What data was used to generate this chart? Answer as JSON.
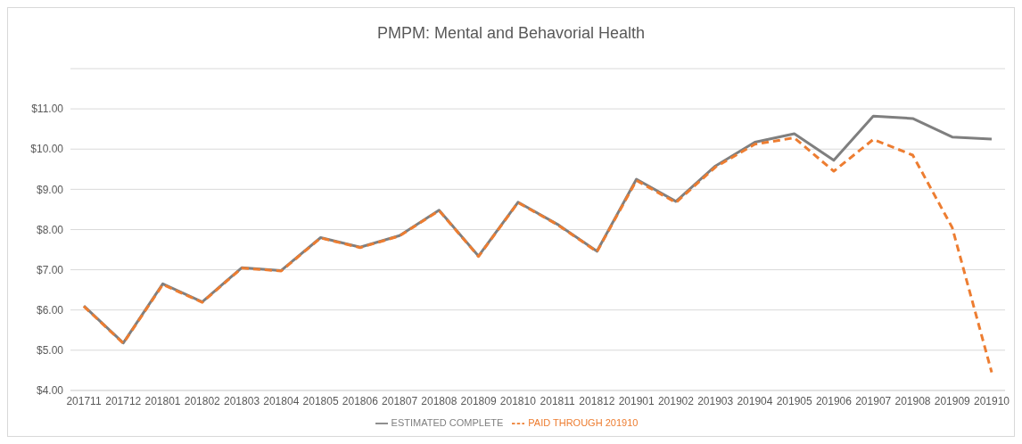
{
  "chart_data": {
    "type": "line",
    "title": "PMPM: Mental and Behavorial Health",
    "categories": [
      "201711",
      "201712",
      "201801",
      "201802",
      "201803",
      "201804",
      "201805",
      "201806",
      "201807",
      "201808",
      "201809",
      "201810",
      "201811",
      "201812",
      "201901",
      "201902",
      "201903",
      "201904",
      "201905",
      "201906",
      "201907",
      "201908",
      "201909",
      "201910"
    ],
    "series": [
      {
        "name": "PAID THROUGH 201910",
        "color": "#ed7d31",
        "line_style": "dashed",
        "values": [
          6.09,
          5.17,
          6.63,
          6.19,
          7.04,
          6.97,
          7.79,
          7.55,
          7.84,
          8.47,
          7.33,
          8.67,
          8.12,
          7.45,
          9.22,
          8.67,
          9.55,
          10.12,
          10.28,
          9.45,
          10.24,
          9.85,
          8.05,
          4.45
        ]
      },
      {
        "name": "ESTIMATED COMPLETE",
        "color": "#7f7f7f",
        "line_style": "solid",
        "values": [
          6.1,
          5.18,
          6.65,
          6.2,
          7.05,
          6.98,
          7.8,
          7.56,
          7.85,
          8.48,
          7.34,
          8.68,
          8.13,
          7.46,
          9.25,
          8.7,
          9.58,
          10.17,
          10.38,
          9.72,
          10.82,
          10.76,
          10.3,
          10.25
        ]
      }
    ],
    "ylim": [
      4,
      12
    ],
    "yticks": [
      {
        "value": 4,
        "label": "$4.00"
      },
      {
        "value": 5,
        "label": "$5.00"
      },
      {
        "value": 6,
        "label": "$6.00"
      },
      {
        "value": 7,
        "label": "$7.00"
      },
      {
        "value": 8,
        "label": "$8.00"
      },
      {
        "value": 9,
        "label": "$9.00"
      },
      {
        "value": 10,
        "label": "$10.00"
      },
      {
        "value": 11,
        "label": "$11.00"
      }
    ],
    "grid": "y",
    "legend": "bottom",
    "marker": "none"
  }
}
